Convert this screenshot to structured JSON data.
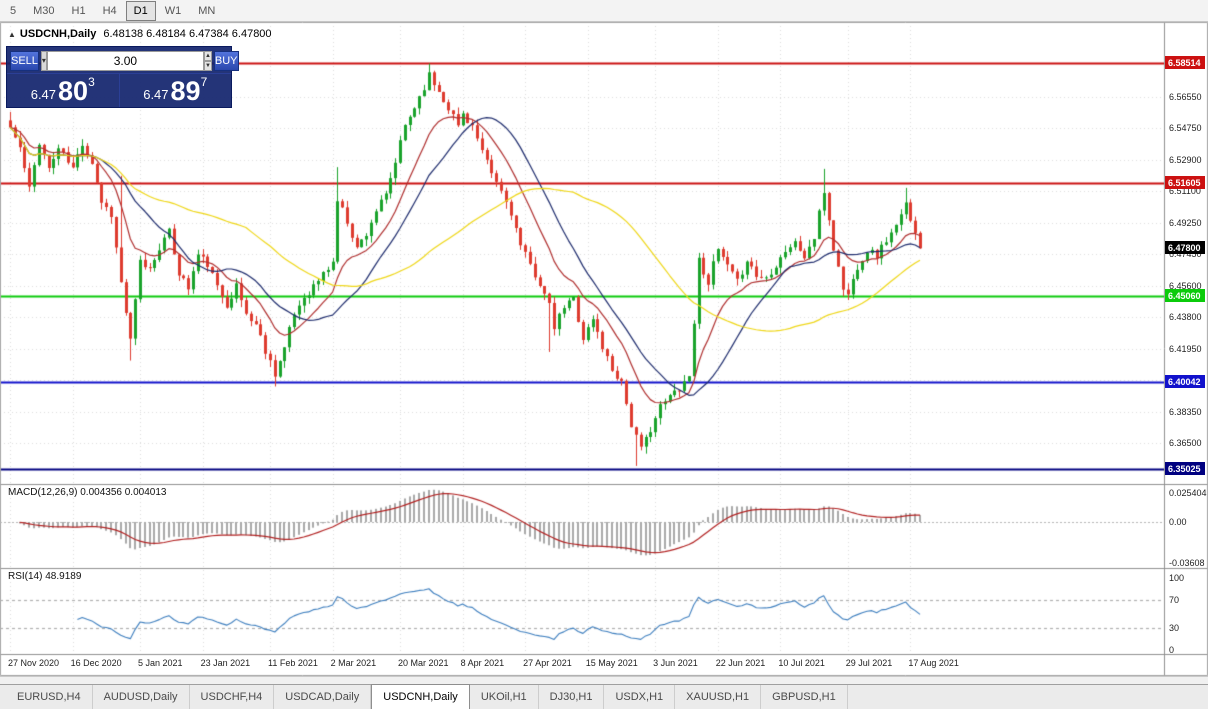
{
  "toolbar": {
    "periods": [
      {
        "label": "5",
        "active": false
      },
      {
        "label": "M30",
        "active": false
      },
      {
        "label": "H1",
        "active": false
      },
      {
        "label": "H4",
        "active": false
      },
      {
        "label": "D1",
        "active": true
      },
      {
        "label": "W1",
        "active": false
      },
      {
        "label": "MN",
        "active": false
      }
    ]
  },
  "chart": {
    "collapse_arrow": "▲",
    "symbol": "USDCNH,Daily",
    "ohlc_text": "6.48138 6.48184 6.47384 6.47800"
  },
  "trade_panel": {
    "sell_label": "SELL",
    "buy_label": "BUY",
    "volume": "3.00",
    "sell_price_prefix": "6.47",
    "sell_price_big": "80",
    "sell_price_sup": "3",
    "buy_price_prefix": "6.47",
    "buy_price_big": "89",
    "buy_price_sup": "7"
  },
  "indicators": {
    "macd_label": "MACD(12,26,9) 0.004356 0.004013",
    "rsi_label": "RSI(14) 48.9189"
  },
  "tabs": [
    {
      "label": "EURUSD,H4",
      "active": false
    },
    {
      "label": "AUDUSD,Daily",
      "active": false
    },
    {
      "label": "USDCHF,H4",
      "active": false
    },
    {
      "label": "USDCAD,Daily",
      "active": false
    },
    {
      "label": "USDCNH,Daily",
      "active": true
    },
    {
      "label": "UKOil,H1",
      "active": false
    },
    {
      "label": "DJ30,H1",
      "active": false
    },
    {
      "label": "USDX,H1",
      "active": false
    },
    {
      "label": "XAUUSD,H1",
      "active": false
    },
    {
      "label": "GBPUSD,H1",
      "active": false
    }
  ],
  "chart_data": {
    "type": "candlestick",
    "symbol": "USDCNH",
    "timeframe": "Daily",
    "ohlc_current": {
      "open": 6.48138,
      "high": 6.48184,
      "low": 6.47384,
      "close": 6.478
    },
    "current_price": {
      "value": 6.478,
      "label": "6.47800",
      "color": "#000000"
    },
    "price_range": {
      "min": 6.345,
      "max": 6.594
    },
    "candle_colors": {
      "up": "#1AA32B",
      "down": "#DE3B2F"
    },
    "y_ticks": [
      {
        "v": 6.5655,
        "label": "6.56550"
      },
      {
        "v": 6.5475,
        "label": "6.54750"
      },
      {
        "v": 6.529,
        "label": "6.52900"
      },
      {
        "v": 6.511,
        "label": "6.51100"
      },
      {
        "v": 6.4925,
        "label": "6.49250"
      },
      {
        "v": 6.4745,
        "label": "6.47450"
      },
      {
        "v": 6.456,
        "label": "6.45600"
      },
      {
        "v": 6.438,
        "label": "6.43800"
      },
      {
        "v": 6.4195,
        "label": "6.41950"
      },
      {
        "v": 6.4015,
        "label": "6.40150"
      },
      {
        "v": 6.3835,
        "label": "6.38350"
      },
      {
        "v": 6.365,
        "label": "6.36500"
      }
    ],
    "levels": [
      {
        "price": 6.58514,
        "label": "6.58514",
        "color": "#CC1111",
        "width": 2
      },
      {
        "price": 6.51605,
        "label": "6.51605",
        "color": "#CC1111",
        "width": 2
      },
      {
        "price": 6.4506,
        "label": "6.45060",
        "color": "#0BCB0B",
        "width": 2
      },
      {
        "price": 6.40042,
        "label": "6.40042",
        "color": "#1111CC",
        "width": 2
      },
      {
        "price": 6.35025,
        "label": "6.35025",
        "color": "#000080",
        "width": 2
      }
    ],
    "x_labels": [
      {
        "day": 0,
        "label": "27 Nov 2020"
      },
      {
        "day": 13,
        "label": "16 Dec 2020"
      },
      {
        "day": 27,
        "label": "5 Jan 2021"
      },
      {
        "day": 40,
        "label": "23 Jan 2021"
      },
      {
        "day": 54,
        "label": "11 Feb 2021"
      },
      {
        "day": 67,
        "label": "2 Mar 2021"
      },
      {
        "day": 81,
        "label": "20 Mar 2021"
      },
      {
        "day": 94,
        "label": "8 Apr 2021"
      },
      {
        "day": 107,
        "label": "27 Apr 2021"
      },
      {
        "day": 120,
        "label": "15 May 2021"
      },
      {
        "day": 134,
        "label": "3 Jun 2021"
      },
      {
        "day": 147,
        "label": "22 Jun 2021"
      },
      {
        "day": 160,
        "label": "10 Jul 2021"
      },
      {
        "day": 174,
        "label": "29 Jul 2021"
      },
      {
        "day": 187,
        "label": "17 Aug 2021"
      }
    ],
    "num_days": 190,
    "close_anchors": [
      [
        0,
        6.548
      ],
      [
        2,
        6.536
      ],
      [
        4,
        6.512
      ],
      [
        6,
        6.54
      ],
      [
        8,
        6.524
      ],
      [
        10,
        6.536
      ],
      [
        13,
        6.524
      ],
      [
        15,
        6.539
      ],
      [
        17,
        6.528
      ],
      [
        19,
        6.505
      ],
      [
        21,
        6.498
      ],
      [
        23,
        6.458
      ],
      [
        25,
        6.424
      ],
      [
        27,
        6.47
      ],
      [
        29,
        6.466
      ],
      [
        31,
        6.479
      ],
      [
        33,
        6.487
      ],
      [
        35,
        6.464
      ],
      [
        37,
        6.455
      ],
      [
        39,
        6.474
      ],
      [
        41,
        6.469
      ],
      [
        43,
        6.455
      ],
      [
        45,
        6.446
      ],
      [
        47,
        6.456
      ],
      [
        49,
        6.44
      ],
      [
        51,
        6.434
      ],
      [
        53,
        6.419
      ],
      [
        55,
        6.406
      ],
      [
        57,
        6.42
      ],
      [
        59,
        6.44
      ],
      [
        61,
        6.45
      ],
      [
        63,
        6.456
      ],
      [
        65,
        6.463
      ],
      [
        67,
        6.47
      ],
      [
        68,
        6.506
      ],
      [
        70,
        6.494
      ],
      [
        72,
        6.478
      ],
      [
        74,
        6.487
      ],
      [
        76,
        6.5
      ],
      [
        78,
        6.508
      ],
      [
        80,
        6.528
      ],
      [
        82,
        6.549
      ],
      [
        84,
        6.56
      ],
      [
        86,
        6.572
      ],
      [
        87,
        6.578
      ],
      [
        89,
        6.569
      ],
      [
        91,
        6.56
      ],
      [
        93,
        6.549
      ],
      [
        94,
        6.556
      ],
      [
        96,
        6.549
      ],
      [
        98,
        6.533
      ],
      [
        100,
        6.521
      ],
      [
        102,
        6.511
      ],
      [
        104,
        6.499
      ],
      [
        106,
        6.479
      ],
      [
        108,
        6.468
      ],
      [
        110,
        6.458
      ],
      [
        112,
        6.444
      ],
      [
        113,
        6.432
      ],
      [
        115,
        6.444
      ],
      [
        117,
        6.449
      ],
      [
        119,
        6.426
      ],
      [
        121,
        6.437
      ],
      [
        123,
        6.421
      ],
      [
        125,
        6.408
      ],
      [
        127,
        6.401
      ],
      [
        129,
        6.376
      ],
      [
        131,
        6.361
      ],
      [
        133,
        6.374
      ],
      [
        135,
        6.386
      ],
      [
        137,
        6.392
      ],
      [
        139,
        6.398
      ],
      [
        141,
        6.404
      ],
      [
        142,
        6.436
      ],
      [
        143,
        6.471
      ],
      [
        145,
        6.459
      ],
      [
        147,
        6.477
      ],
      [
        149,
        6.467
      ],
      [
        151,
        6.458
      ],
      [
        153,
        6.472
      ],
      [
        155,
        6.462
      ],
      [
        157,
        6.461
      ],
      [
        159,
        6.469
      ],
      [
        161,
        6.477
      ],
      [
        163,
        6.481
      ],
      [
        165,
        6.473
      ],
      [
        167,
        6.484
      ],
      [
        169,
        6.511
      ],
      [
        171,
        6.478
      ],
      [
        173,
        6.455
      ],
      [
        174,
        6.451
      ],
      [
        176,
        6.468
      ],
      [
        178,
        6.477
      ],
      [
        180,
        6.474
      ],
      [
        182,
        6.483
      ],
      [
        184,
        6.49
      ],
      [
        186,
        6.503
      ],
      [
        187,
        6.496
      ],
      [
        188,
        6.489
      ],
      [
        189,
        6.478
      ]
    ],
    "wick_overrides": [
      [
        0,
        "h",
        6.557
      ],
      [
        23,
        "h",
        6.52
      ],
      [
        25,
        "l",
        6.413
      ],
      [
        55,
        "l",
        6.398
      ],
      [
        68,
        "h",
        6.525
      ],
      [
        87,
        "h",
        6.585
      ],
      [
        112,
        "l",
        6.418
      ],
      [
        130,
        "l",
        6.352
      ],
      [
        169,
        "h",
        6.524
      ],
      [
        186,
        "h",
        6.513
      ]
    ],
    "moving_averages": [
      {
        "type": "ema",
        "period": 12,
        "color": "#B03030"
      },
      {
        "type": "sma",
        "period": 20,
        "color": "#1F2D6E"
      },
      {
        "type": "sma",
        "period": 50,
        "color": "#EFD718"
      }
    ],
    "macd": {
      "fast": 12,
      "slow": 26,
      "signal": 9,
      "value": 0.004356,
      "signal_value": 0.004013,
      "histogram_color": "#A9A9A9",
      "signal_color": "#B22222",
      "ticks": [
        {
          "v": 0.025404,
          "label": "0.025404"
        },
        {
          "v": 0,
          "label": "0.00"
        },
        {
          "v": -0.03608,
          "label": "-0.03608"
        }
      ]
    },
    "rsi": {
      "period": 14,
      "value": 48.9189,
      "color": "#3E7FBF",
      "levels": [
        70,
        30
      ],
      "ticks": [
        {
          "v": 100,
          "label": "100"
        },
        {
          "v": 70,
          "label": "70"
        },
        {
          "v": 30,
          "label": "30"
        },
        {
          "v": 0,
          "label": "0"
        }
      ]
    }
  }
}
